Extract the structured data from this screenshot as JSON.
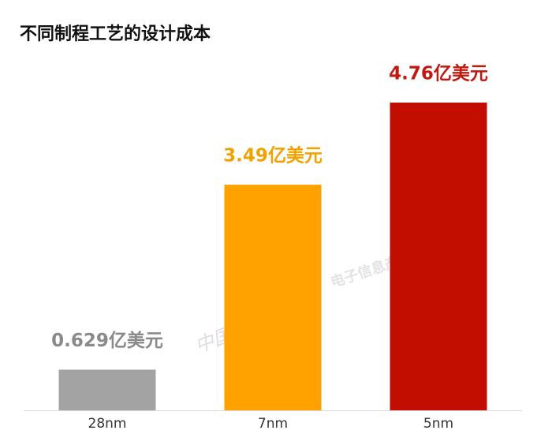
{
  "chart_data": {
    "type": "bar",
    "title": "不同制程工艺的设计成本",
    "categories": [
      "28nm",
      "7nm",
      "5nm"
    ],
    "values": [
      0.629,
      3.49,
      4.76
    ],
    "value_labels": [
      "0.629亿美元",
      "3.49亿美元",
      "4.76亿美元"
    ],
    "colors": [
      "#a3a3a3",
      "#ffa200",
      "#c20e00"
    ],
    "label_colors": [
      "#8a8a8a",
      "#f0a300",
      "#bf1a10"
    ],
    "watermarks": [
      "中国电子报",
      "电子信息产业网"
    ]
  }
}
